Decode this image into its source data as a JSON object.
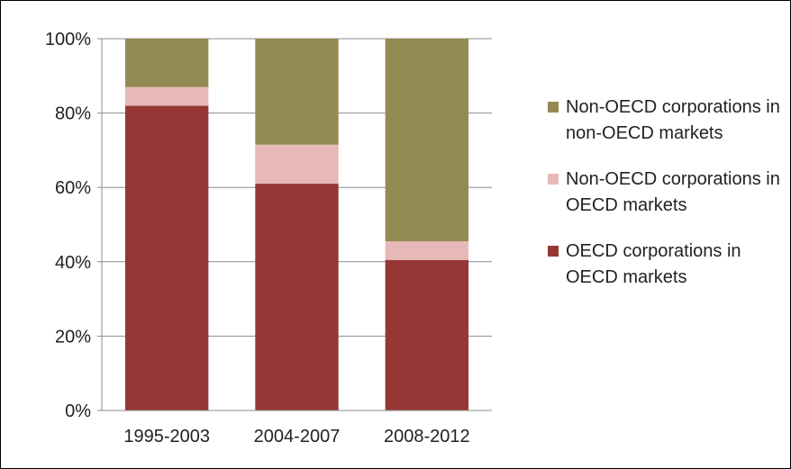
{
  "chart_data": {
    "type": "bar",
    "stacked": true,
    "categories": [
      "1995-2003",
      "2004-2007",
      "2008-2012"
    ],
    "series": [
      {
        "name": "OECD corporations in OECD markets",
        "values": [
          82,
          61,
          40.5
        ],
        "color": "#953735"
      },
      {
        "name": "Non-OECD corporations in OECD markets",
        "values": [
          5,
          10.5,
          5
        ],
        "color": "#e6b9b8"
      },
      {
        "name": "Non-OECD corporations in non-OECD markets",
        "values": [
          13,
          28.5,
          54.5
        ],
        "color": "#948a54"
      }
    ],
    "legend_order": [
      2,
      1,
      0
    ],
    "legend_position": "right",
    "ylim": [
      0,
      100
    ],
    "yticks": [
      0,
      20,
      40,
      60,
      80,
      100
    ],
    "ytick_labels": [
      "0%",
      "20%",
      "40%",
      "60%",
      "80%",
      "100%"
    ],
    "grid": true,
    "title": "",
    "xlabel": "",
    "ylabel": ""
  }
}
